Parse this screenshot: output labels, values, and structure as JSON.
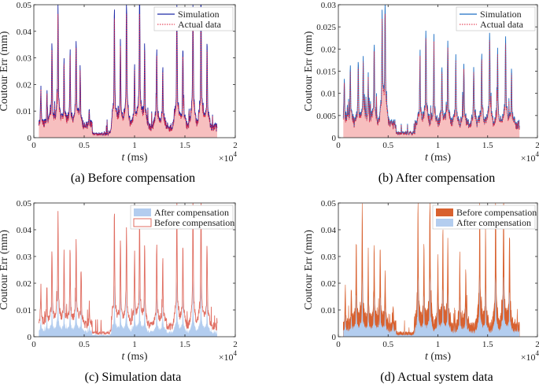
{
  "colors": {
    "sim_line": "#1f2aa8",
    "sim_line_b": "#1e6fc4",
    "actual_dotted": "#e0203a",
    "envelope_fill": "#f08a8a",
    "after_fill": "#b3cdef",
    "before_outline": "#e06e62",
    "before_fill": "#d8612f",
    "axis": "#262626",
    "background": "#ffffff"
  },
  "chart_data": [
    {
      "id": "a",
      "type": "line",
      "caption": "(a) Before compensation",
      "xlabel_italic": "t",
      "xlabel_rest": " (ms)",
      "ylabel": "Coutour Err (mm)",
      "multiplier": "×10",
      "multiplier_exp": "4",
      "xlim": [
        0,
        2
      ],
      "ylim": [
        0,
        0.05
      ],
      "xticks": [
        "0",
        "0.5",
        "1",
        "1.5",
        "2"
      ],
      "yticks": [
        "0",
        "0.01",
        "0.02",
        "0.03",
        "0.04",
        "0.05"
      ],
      "legend_position": "top-right",
      "series": [
        {
          "name": "Simulation",
          "style": "line-blue"
        },
        {
          "name": "Actual data",
          "style": "dotted-red"
        }
      ],
      "extent": [
        0.05,
        1.82
      ],
      "peaks": [
        [
          0.07,
          0.012
        ],
        [
          0.13,
          0.012
        ],
        [
          0.18,
          0.027
        ],
        [
          0.24,
          0.041
        ],
        [
          0.3,
          0.022
        ],
        [
          0.36,
          0.025
        ],
        [
          0.42,
          0.028
        ],
        [
          0.46,
          0.018
        ],
        [
          0.55,
          0.007
        ],
        [
          0.8,
          0.039
        ],
        [
          0.86,
          0.028
        ],
        [
          0.92,
          0.044
        ],
        [
          1.0,
          0.02
        ],
        [
          1.05,
          0.045
        ],
        [
          1.1,
          0.026
        ],
        [
          1.22,
          0.025
        ],
        [
          1.28,
          0.02
        ],
        [
          1.42,
          0.044
        ],
        [
          1.48,
          0.026
        ],
        [
          1.58,
          0.045
        ],
        [
          1.66,
          0.045
        ],
        [
          1.72,
          0.028
        ]
      ],
      "baseline": 0.004
    },
    {
      "id": "b",
      "type": "line",
      "caption": "(b) After compensation",
      "xlabel_italic": "t",
      "xlabel_rest": " (ms)",
      "ylabel": "Coutour Err (mm)",
      "multiplier": "×10",
      "multiplier_exp": "4",
      "xlim": [
        0,
        2
      ],
      "ylim": [
        0,
        0.03
      ],
      "xticks": [
        "0",
        "0.5",
        "1",
        "1.5",
        "2"
      ],
      "yticks": [
        "0",
        "0.005",
        "0.01",
        "0.015",
        "0.02",
        "0.025",
        "0.03"
      ],
      "legend_position": "top-right",
      "series": [
        {
          "name": "Simulation",
          "style": "line-blue"
        },
        {
          "name": "Actual data",
          "style": "dotted-red"
        }
      ],
      "extent": [
        0.05,
        1.82
      ],
      "peaks": [
        [
          0.06,
          0.009
        ],
        [
          0.12,
          0.012
        ],
        [
          0.2,
          0.012
        ],
        [
          0.25,
          0.013
        ],
        [
          0.3,
          0.009
        ],
        [
          0.36,
          0.016
        ],
        [
          0.44,
          0.021
        ],
        [
          0.47,
          0.025
        ],
        [
          0.82,
          0.013
        ],
        [
          0.88,
          0.018
        ],
        [
          0.96,
          0.016
        ],
        [
          1.04,
          0.011
        ],
        [
          1.1,
          0.016
        ],
        [
          1.18,
          0.013
        ],
        [
          1.26,
          0.011
        ],
        [
          1.36,
          0.011
        ],
        [
          1.44,
          0.014
        ],
        [
          1.52,
          0.018
        ],
        [
          1.6,
          0.014
        ],
        [
          1.68,
          0.017
        ],
        [
          1.74,
          0.01
        ]
      ],
      "baseline": 0.003
    },
    {
      "id": "c",
      "type": "area",
      "caption": "(c) Simulation data",
      "xlabel_italic": "t",
      "xlabel_rest": " (ms)",
      "ylabel": "Coutour Err (mm)",
      "multiplier": "×10",
      "multiplier_exp": "4",
      "xlim": [
        0,
        2
      ],
      "ylim": [
        0,
        0.05
      ],
      "xticks": [
        "0",
        "0.5",
        "1",
        "1.5",
        "2"
      ],
      "yticks": [
        "0",
        "0.01",
        "0.02",
        "0.03",
        "0.04",
        "0.05"
      ],
      "legend_position": "top-right",
      "series": [
        {
          "name": "After compensation",
          "style": "fill-blue"
        },
        {
          "name": "Before compensation",
          "style": "outline-red"
        }
      ],
      "extent": [
        0.05,
        1.82
      ],
      "peaks": [
        [
          0.07,
          0.012
        ],
        [
          0.13,
          0.013
        ],
        [
          0.18,
          0.025
        ],
        [
          0.24,
          0.037
        ],
        [
          0.3,
          0.023
        ],
        [
          0.36,
          0.026
        ],
        [
          0.42,
          0.027
        ],
        [
          0.47,
          0.018
        ],
        [
          0.55,
          0.007
        ],
        [
          0.8,
          0.037
        ],
        [
          0.86,
          0.028
        ],
        [
          0.92,
          0.032
        ],
        [
          1.0,
          0.024
        ],
        [
          1.05,
          0.034
        ],
        [
          1.1,
          0.026
        ],
        [
          1.22,
          0.025
        ],
        [
          1.28,
          0.022
        ],
        [
          1.42,
          0.039
        ],
        [
          1.48,
          0.026
        ],
        [
          1.58,
          0.039
        ],
        [
          1.66,
          0.039
        ],
        [
          1.72,
          0.026
        ]
      ],
      "baseline": 0.004,
      "after_ratio": 0.42
    },
    {
      "id": "d",
      "type": "area",
      "caption": "(d) Actual system data",
      "xlabel_italic": "t",
      "xlabel_rest": " (ms)",
      "ylabel": "Coutour Err (mm)",
      "multiplier": "×10",
      "multiplier_exp": "4",
      "xlim": [
        0,
        2
      ],
      "ylim": [
        0,
        0.05
      ],
      "xticks": [
        "0",
        "0.5",
        "1",
        "1.5",
        "2"
      ],
      "yticks": [
        "0",
        "0.01",
        "0.02",
        "0.03",
        "0.04",
        "0.05"
      ],
      "legend_position": "top-right",
      "series": [
        {
          "name": "Before compensation",
          "style": "fill-orange"
        },
        {
          "name": "After compensation",
          "style": "fill-blue"
        }
      ],
      "extent": [
        0.05,
        1.82
      ],
      "peaks": [
        [
          0.07,
          0.012
        ],
        [
          0.13,
          0.013
        ],
        [
          0.18,
          0.027
        ],
        [
          0.24,
          0.038
        ],
        [
          0.3,
          0.024
        ],
        [
          0.36,
          0.025
        ],
        [
          0.42,
          0.026
        ],
        [
          0.47,
          0.018
        ],
        [
          0.55,
          0.007
        ],
        [
          0.8,
          0.04
        ],
        [
          0.86,
          0.028
        ],
        [
          0.92,
          0.045
        ],
        [
          1.0,
          0.022
        ],
        [
          1.05,
          0.032
        ],
        [
          1.1,
          0.027
        ],
        [
          1.22,
          0.024
        ],
        [
          1.28,
          0.02
        ],
        [
          1.42,
          0.043
        ],
        [
          1.48,
          0.027
        ],
        [
          1.58,
          0.045
        ],
        [
          1.66,
          0.045
        ],
        [
          1.72,
          0.03
        ]
      ],
      "baseline": 0.004,
      "after_ratio": 0.45
    }
  ]
}
